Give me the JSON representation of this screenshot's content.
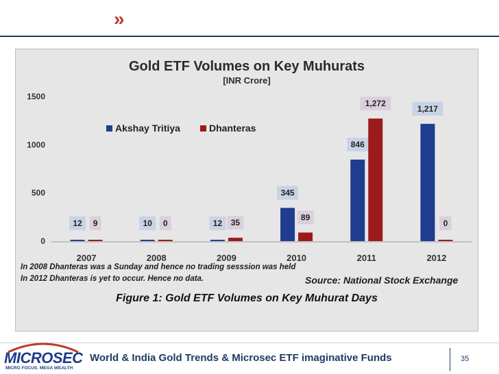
{
  "header": {
    "chevron": "»"
  },
  "chart_data": {
    "type": "bar",
    "title": "Gold ETF Volumes on Key Muhurats",
    "subtitle": "[INR Crore]",
    "categories": [
      "2007",
      "2008",
      "2009",
      "2010",
      "2011",
      "2012"
    ],
    "series": [
      {
        "name": "Akshay Tritiya",
        "color": "#1f3c8f",
        "values": [
          12,
          10,
          12,
          345,
          846,
          1217
        ],
        "labels": [
          "12",
          "10",
          "12",
          "345",
          "846",
          "1,217"
        ]
      },
      {
        "name": "Dhanteras",
        "color": "#9b1b1b",
        "values": [
          9,
          0,
          35,
          89,
          1272,
          0
        ],
        "labels": [
          "9",
          "0",
          "35",
          "89",
          "1,272",
          "0"
        ]
      }
    ],
    "yticks": [
      0,
      500,
      1000,
      1500
    ],
    "ytick_labels": [
      "0",
      "500",
      "1000",
      "1500"
    ],
    "ylim": [
      0,
      1500
    ],
    "legend_position": "upper-left",
    "notes": [
      "In 2008 Dhanteras was a Sunday and hence no trading sesssion was held",
      "In 2012 Dhanteras is yet to occur. Hence no data."
    ],
    "source": "Source: National Stock Exchange",
    "caption": "Figure 1: Gold ETF Volumes on Key Muhurat Days"
  },
  "footer": {
    "logo_name": "MICROSEC",
    "logo_tagline": "MICRO FOCUS. MEGA WEALTH",
    "text": "World & India Gold Trends & Microsec ETF imaginative Funds",
    "page_number": "35"
  }
}
